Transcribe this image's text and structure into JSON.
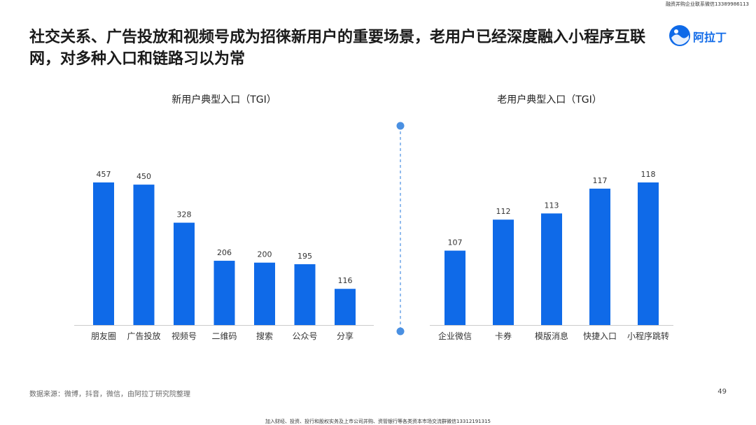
{
  "header": {
    "top_note": "融资并购企业联系微信13389986113",
    "headline": "社交关系、广告投放和视频号成为招徕新用户的重要场景，老用户已经深度融入小程序互联网，对多种入口和链路习以为常",
    "logo_text": "阿拉丁"
  },
  "colors": {
    "bar": "#0f6ae8",
    "divider": "#4a90e2"
  },
  "chart_data": [
    {
      "type": "bar",
      "title": "新用户典型入口（TGI）",
      "categories": [
        "朋友圈",
        "广告投放",
        "视频号",
        "二维码",
        "搜索",
        "公众号",
        "分享"
      ],
      "values": [
        457,
        450,
        328,
        206,
        200,
        195,
        116
      ],
      "ylim": [
        0,
        520
      ],
      "grid": false,
      "data_labels": true
    },
    {
      "type": "bar",
      "title": "老用户典型入口（TGI）",
      "categories": [
        "企业微信",
        "卡券",
        "模版消息",
        "快捷入口",
        "小程序跳转"
      ],
      "values": [
        107,
        112,
        113,
        117,
        118
      ],
      "ylim": [
        95,
        121
      ],
      "grid": false,
      "data_labels": true
    }
  ],
  "footer": {
    "source": "数据来源：微博，抖音，微信，由阿拉丁研究院整理",
    "page_number": "49",
    "bottom_note": "加入财经、投资、投行和股权实务及上市公司并购、资管银行等各类资本市场交流群微信13312191315"
  }
}
